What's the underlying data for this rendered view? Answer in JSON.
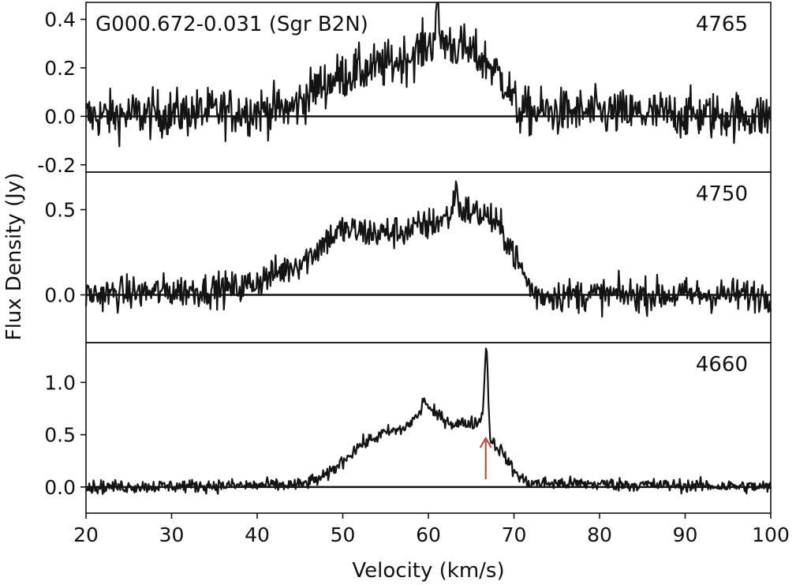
{
  "chart_data": {
    "type": "line",
    "title": "",
    "xlabel": "Velocity (km/s)",
    "ylabel": "Flux Density (Jy)",
    "xlim": [
      20,
      100
    ],
    "xticks": [
      "20",
      "30",
      "40",
      "50",
      "60",
      "70",
      "80",
      "90",
      "100"
    ],
    "colors": {
      "line": "#141414",
      "arrow": "#b5452c"
    },
    "panels": [
      {
        "source": "G000.672-0.031 (Sgr B2N)",
        "series_name": "4765",
        "ylim": [
          -0.23,
          0.47
        ],
        "yticks": [
          "-0.2",
          "0.0",
          "0.2",
          "0.4"
        ],
        "noise": 0.07,
        "profile": [
          [
            20,
            0
          ],
          [
            44,
            0.03
          ],
          [
            47,
            0.12
          ],
          [
            50,
            0.17
          ],
          [
            55,
            0.21
          ],
          [
            58,
            0.25
          ],
          [
            61,
            0.32
          ],
          [
            64,
            0.28
          ],
          [
            67,
            0.22
          ],
          [
            69,
            0.14
          ],
          [
            70.5,
            0.02
          ],
          [
            100,
            0
          ]
        ],
        "spikes": [
          [
            61,
            0.45
          ]
        ]
      },
      {
        "source": "",
        "series_name": "4750",
        "ylim": [
          -0.28,
          0.72
        ],
        "yticks": [
          "0.0",
          "0.5"
        ],
        "noise": 0.07,
        "profile": [
          [
            20,
            0
          ],
          [
            38,
            0.04
          ],
          [
            42,
            0.12
          ],
          [
            46,
            0.22
          ],
          [
            48,
            0.32
          ],
          [
            50,
            0.38
          ],
          [
            54,
            0.36
          ],
          [
            58,
            0.38
          ],
          [
            61,
            0.43
          ],
          [
            64,
            0.5
          ],
          [
            67,
            0.46
          ],
          [
            69,
            0.35
          ],
          [
            71.5,
            0.08
          ],
          [
            72.5,
            0
          ],
          [
            100,
            0
          ]
        ],
        "spikes": [
          [
            63.2,
            0.66
          ]
        ]
      },
      {
        "source": "",
        "series_name": "4660",
        "ylim": [
          -0.25,
          1.38
        ],
        "yticks": [
          "0.0",
          "0.5",
          "1.0"
        ],
        "noise": 0.045,
        "profile": [
          [
            20,
            0
          ],
          [
            45,
            0.02
          ],
          [
            48,
            0.1
          ],
          [
            50,
            0.25
          ],
          [
            52,
            0.4
          ],
          [
            55,
            0.52
          ],
          [
            57,
            0.55
          ],
          [
            59,
            0.7
          ],
          [
            59.5,
            0.85
          ],
          [
            60.3,
            0.72
          ],
          [
            63,
            0.6
          ],
          [
            66,
            0.62
          ],
          [
            66.5,
            0.78
          ],
          [
            67.2,
            0.45
          ],
          [
            68.5,
            0.35
          ],
          [
            70,
            0.15
          ],
          [
            71.5,
            0.04
          ],
          [
            100,
            0
          ]
        ],
        "spikes": [
          [
            66.8,
            1.32
          ]
        ],
        "arrow_x": 66.7
      }
    ]
  }
}
